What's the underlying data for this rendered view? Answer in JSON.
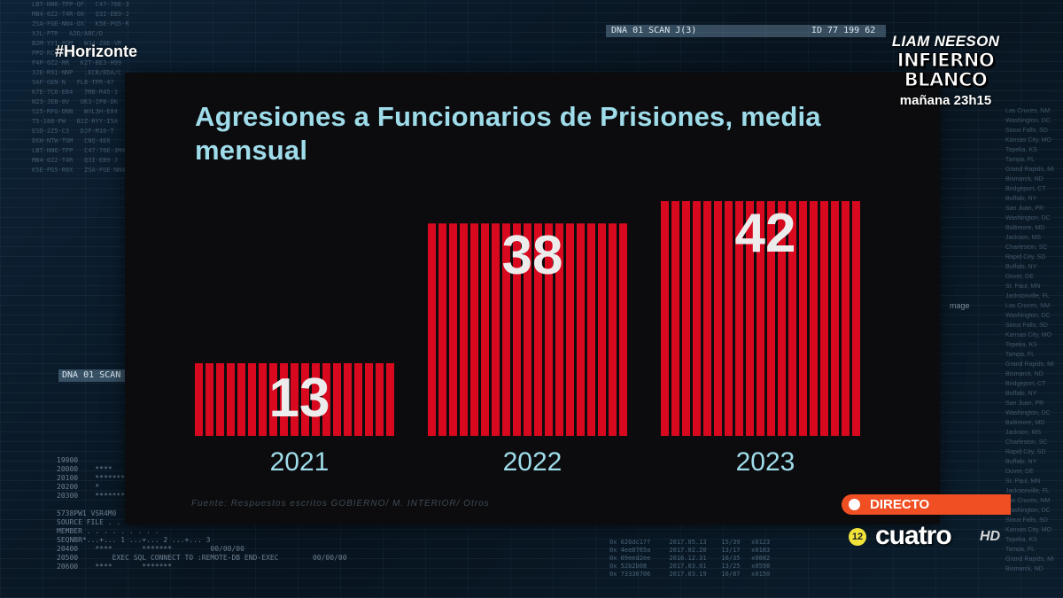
{
  "overlay": {
    "hashtag": "#Horizonte",
    "promo": {
      "actor": "LIAM NEESON",
      "title_line1": "INFIERNO",
      "title_line2": "BLANCO",
      "time": "mañana 23h15"
    },
    "live_label": "DIRECTO",
    "channel": {
      "number": "12",
      "name": "cuatro",
      "hd": "HD"
    },
    "bg_label_left": "DNA 01 SCAN",
    "bg_label_right": "DNA 01 SCAN J(3)",
    "bg_id_right": "ID 77 199 62",
    "bg_image_label": "mage"
  },
  "source_note": "Fuente: Respuestos escritos GOBIERNO/ M. INTERIOR/ Otros",
  "colors": {
    "bar": "#d8091f",
    "title": "#9fdcea",
    "value": "#ececec",
    "panel": "#0c0c0e",
    "live": "#f04e23"
  },
  "chart_data": {
    "type": "bar",
    "title": "Agresiones a Funcionarios de Prisiones, media mensual",
    "categories": [
      "2021",
      "2022",
      "2023"
    ],
    "values": [
      13,
      38,
      42
    ],
    "ylim": [
      0,
      42
    ],
    "grid": false,
    "legend": "none"
  }
}
